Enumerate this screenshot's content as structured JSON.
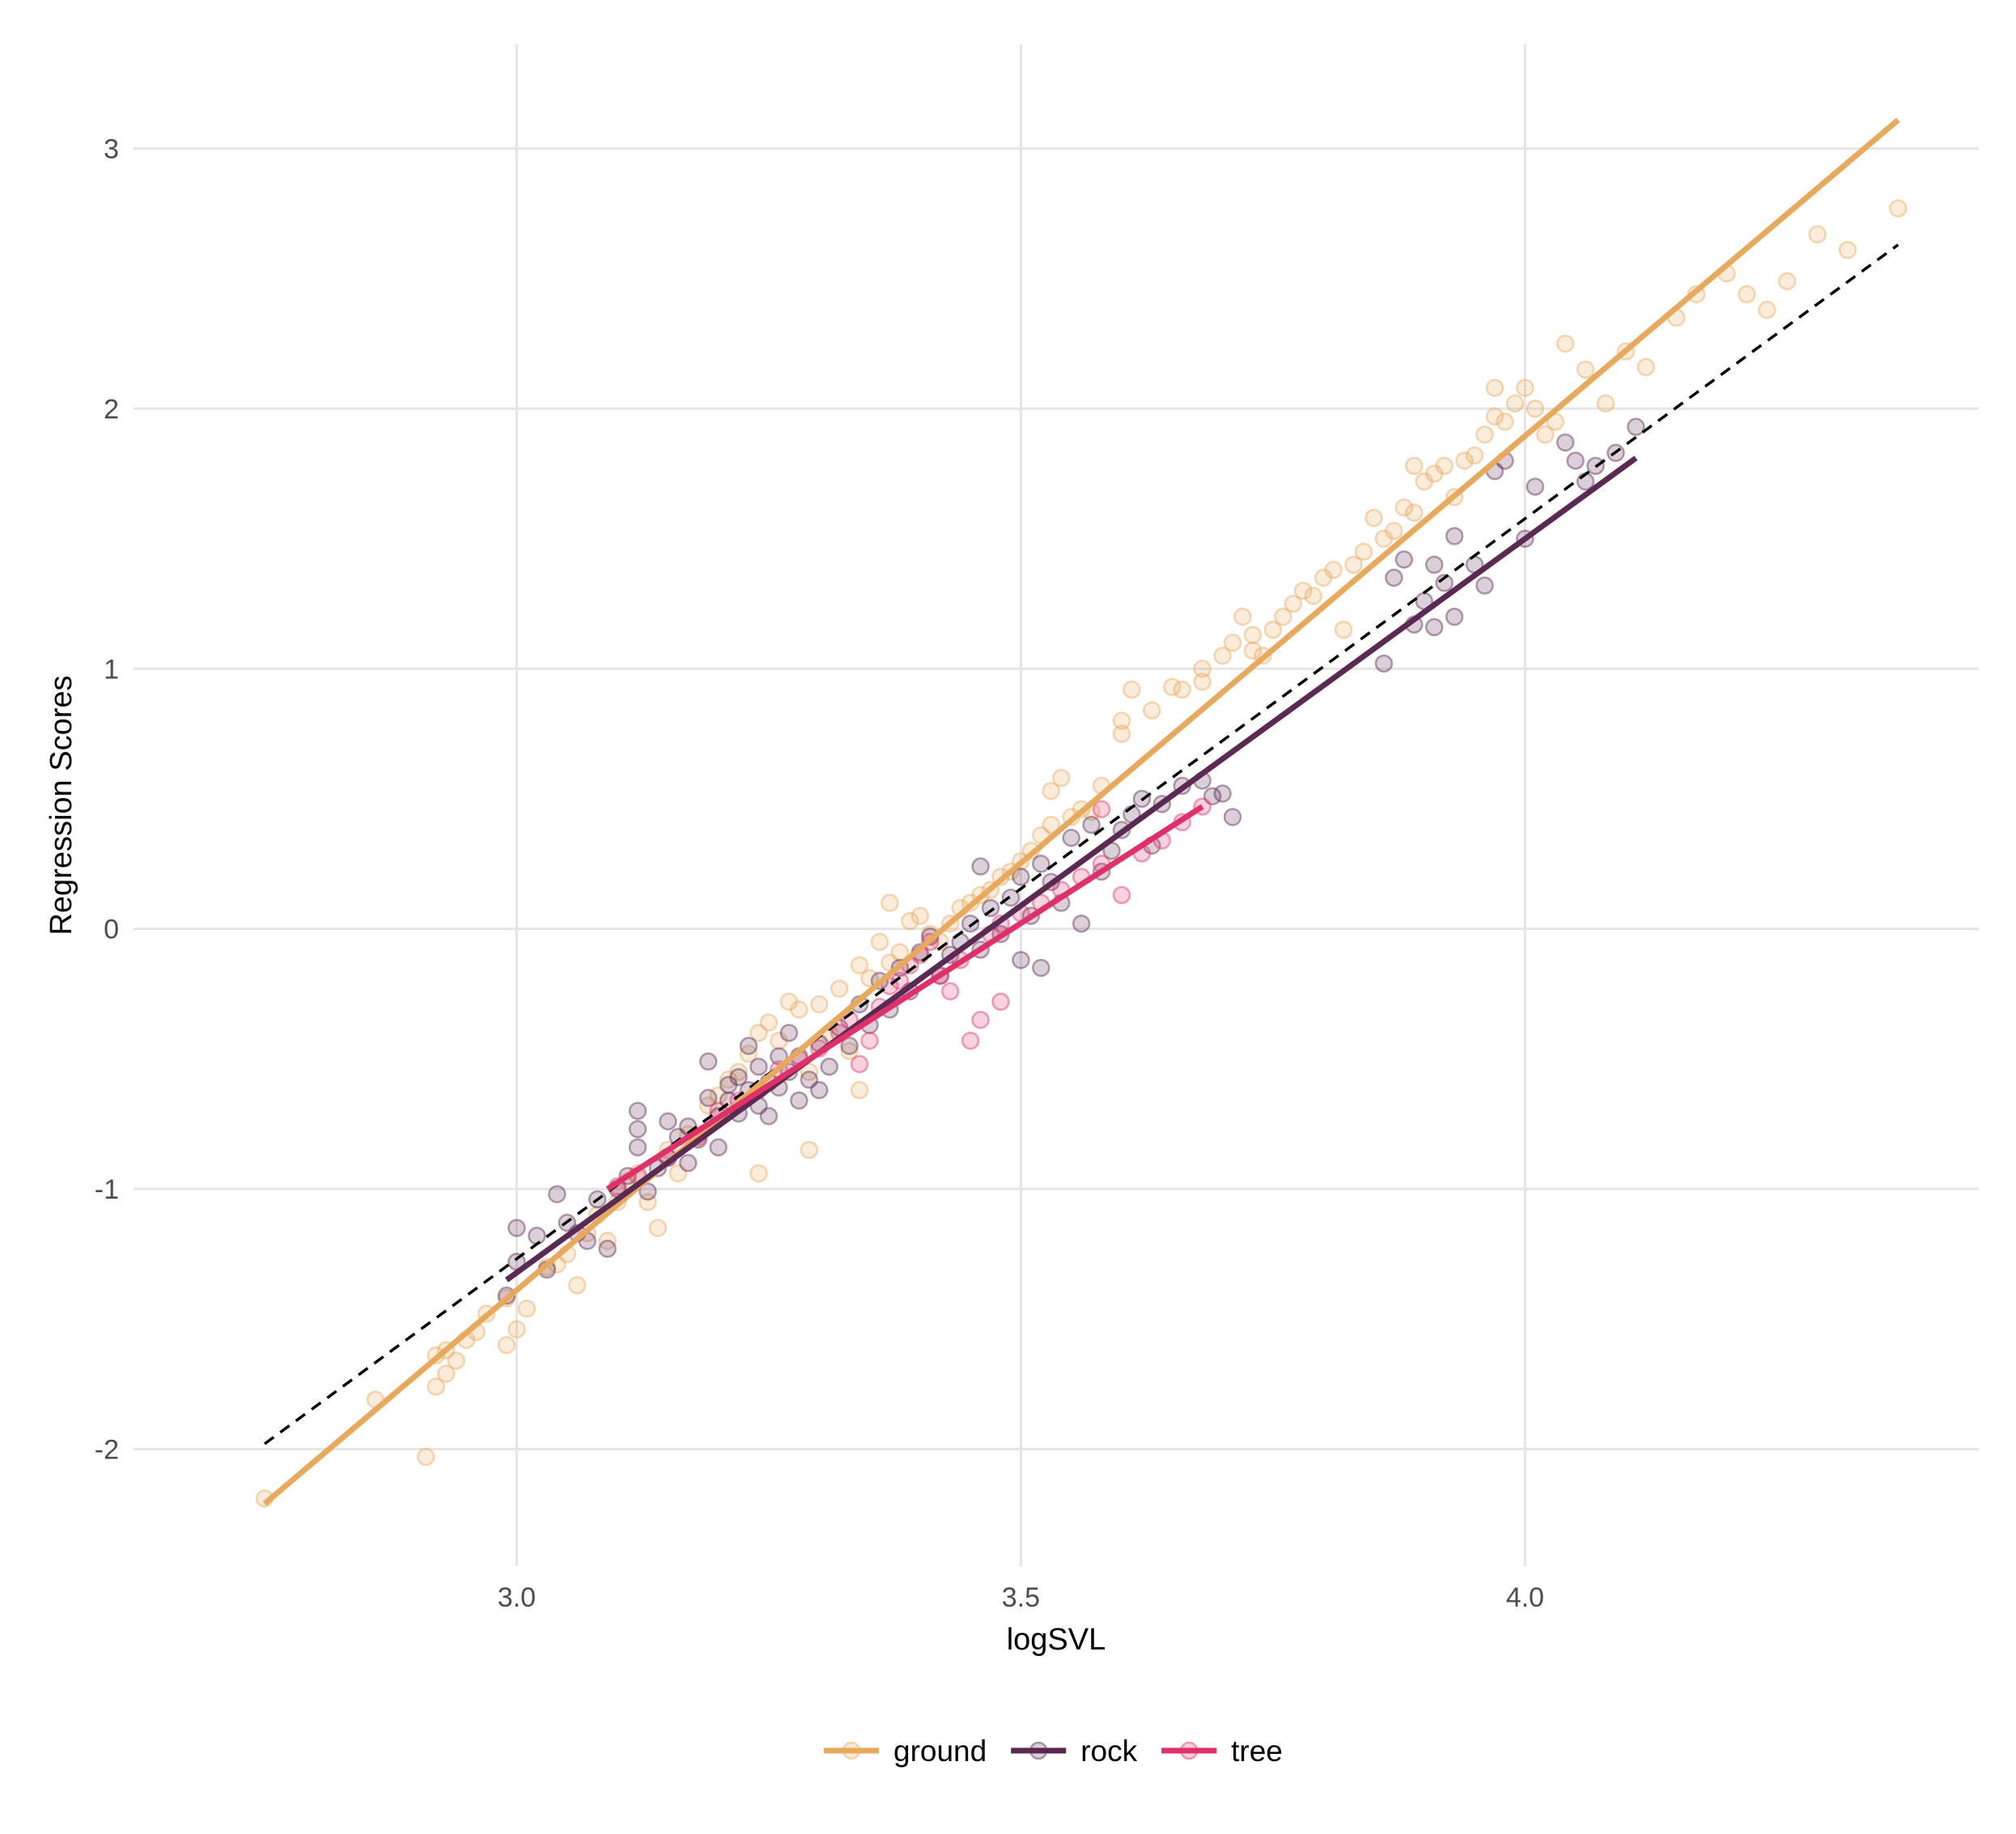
{
  "chart_data": {
    "type": "scatter",
    "title": "",
    "xlabel": "logSVL",
    "ylabel": "Regression Scores",
    "xlim": [
      2.62,
      4.45
    ],
    "ylim": [
      -2.45,
      3.4
    ],
    "x_ticks": [
      {
        "value": 3.0,
        "label": "3.0"
      },
      {
        "value": 3.5,
        "label": "3.5"
      },
      {
        "value": 4.0,
        "label": "4.0"
      }
    ],
    "y_ticks": [
      {
        "value": -2,
        "label": "-2"
      },
      {
        "value": -1,
        "label": "-1"
      },
      {
        "value": 0,
        "label": "0"
      },
      {
        "value": 1,
        "label": "1"
      },
      {
        "value": 2,
        "label": "2"
      },
      {
        "value": 3,
        "label": "3"
      }
    ],
    "grid": true,
    "legend_position": "bottom",
    "colors": {
      "ground": "#E9A95C",
      "rock": "#5B2A52",
      "tree": "#E0306A",
      "overall": "#000000"
    },
    "series": [
      {
        "name": "ground",
        "color": "#E9A95C",
        "fit": {
          "x": [
            2.75,
            4.37
          ],
          "y": [
            -2.21,
            3.11
          ]
        },
        "points": [
          [
            2.75,
            -2.19
          ],
          [
            2.86,
            -1.81
          ],
          [
            2.91,
            -2.03
          ],
          [
            2.92,
            -1.76
          ],
          [
            2.92,
            -1.64
          ],
          [
            2.93,
            -1.62
          ],
          [
            2.93,
            -1.71
          ],
          [
            2.94,
            -1.66
          ],
          [
            2.95,
            -1.58
          ],
          [
            2.96,
            -1.55
          ],
          [
            2.97,
            -1.48
          ],
          [
            2.99,
            -1.6
          ],
          [
            2.99,
            -1.42
          ],
          [
            3.0,
            -1.54
          ],
          [
            3.01,
            -1.46
          ],
          [
            3.03,
            -1.3
          ],
          [
            3.04,
            -1.29
          ],
          [
            3.05,
            -1.25
          ],
          [
            3.06,
            -1.37
          ],
          [
            3.07,
            -1.17
          ],
          [
            3.08,
            -1.1
          ],
          [
            3.09,
            -1.2
          ],
          [
            3.1,
            -1.05
          ],
          [
            3.11,
            -0.97
          ],
          [
            3.12,
            -0.94
          ],
          [
            3.13,
            -1.05
          ],
          [
            3.14,
            -1.15
          ],
          [
            3.15,
            -0.85
          ],
          [
            3.16,
            -0.94
          ],
          [
            3.17,
            -0.79
          ],
          [
            3.18,
            -0.79
          ],
          [
            3.19,
            -0.68
          ],
          [
            3.2,
            -0.64
          ],
          [
            3.21,
            -0.58
          ],
          [
            3.22,
            -0.55
          ],
          [
            3.23,
            -0.48
          ],
          [
            3.24,
            -0.4
          ],
          [
            3.24,
            -0.94
          ],
          [
            3.25,
            -0.36
          ],
          [
            3.26,
            -0.43
          ],
          [
            3.27,
            -0.28
          ],
          [
            3.28,
            -0.31
          ],
          [
            3.29,
            -0.55
          ],
          [
            3.29,
            -0.85
          ],
          [
            3.3,
            -0.29
          ],
          [
            3.31,
            -0.4
          ],
          [
            3.32,
            -0.23
          ],
          [
            3.33,
            -0.47
          ],
          [
            3.34,
            -0.62
          ],
          [
            3.34,
            -0.14
          ],
          [
            3.35,
            -0.19
          ],
          [
            3.36,
            -0.05
          ],
          [
            3.37,
            -0.13
          ],
          [
            3.37,
            0.1
          ],
          [
            3.38,
            -0.09
          ],
          [
            3.39,
            0.03
          ],
          [
            3.4,
            0.05
          ],
          [
            3.41,
            -0.02
          ],
          [
            3.42,
            -0.05
          ],
          [
            3.43,
            0.02
          ],
          [
            3.44,
            0.08
          ],
          [
            3.45,
            0.1
          ],
          [
            3.46,
            0.13
          ],
          [
            3.47,
            0.15
          ],
          [
            3.48,
            0.2
          ],
          [
            3.49,
            0.22
          ],
          [
            3.5,
            0.26
          ],
          [
            3.51,
            0.3
          ],
          [
            3.52,
            0.36
          ],
          [
            3.53,
            0.4
          ],
          [
            3.53,
            0.53
          ],
          [
            3.54,
            0.58
          ],
          [
            3.55,
            0.43
          ],
          [
            3.56,
            0.46
          ],
          [
            3.57,
            0.45
          ],
          [
            3.58,
            0.55
          ],
          [
            3.6,
            0.75
          ],
          [
            3.6,
            0.8
          ],
          [
            3.61,
            0.92
          ],
          [
            3.63,
            0.84
          ],
          [
            3.65,
            0.93
          ],
          [
            3.66,
            0.92
          ],
          [
            3.68,
            1.0
          ],
          [
            3.68,
            0.95
          ],
          [
            3.7,
            1.05
          ],
          [
            3.71,
            1.1
          ],
          [
            3.72,
            1.2
          ],
          [
            3.73,
            1.13
          ],
          [
            3.73,
            1.07
          ],
          [
            3.74,
            1.05
          ],
          [
            3.75,
            1.15
          ],
          [
            3.76,
            1.2
          ],
          [
            3.77,
            1.25
          ],
          [
            3.78,
            1.3
          ],
          [
            3.79,
            1.28
          ],
          [
            3.8,
            1.35
          ],
          [
            3.81,
            1.38
          ],
          [
            3.82,
            1.15
          ],
          [
            3.83,
            1.4
          ],
          [
            3.84,
            1.45
          ],
          [
            3.85,
            1.58
          ],
          [
            3.86,
            1.5
          ],
          [
            3.87,
            1.53
          ],
          [
            3.88,
            1.62
          ],
          [
            3.89,
            1.6
          ],
          [
            3.89,
            1.78
          ],
          [
            3.9,
            1.72
          ],
          [
            3.91,
            1.75
          ],
          [
            3.92,
            1.78
          ],
          [
            3.93,
            1.66
          ],
          [
            3.94,
            1.8
          ],
          [
            3.95,
            1.82
          ],
          [
            3.96,
            1.9
          ],
          [
            3.97,
            1.97
          ],
          [
            3.97,
            2.08
          ],
          [
            3.98,
            1.95
          ],
          [
            3.99,
            2.02
          ],
          [
            4.0,
            2.08
          ],
          [
            4.01,
            2.0
          ],
          [
            4.02,
            1.9
          ],
          [
            4.03,
            1.95
          ],
          [
            4.04,
            2.25
          ],
          [
            4.06,
            2.15
          ],
          [
            4.08,
            2.02
          ],
          [
            4.1,
            2.22
          ],
          [
            4.12,
            2.16
          ],
          [
            4.15,
            2.35
          ],
          [
            4.17,
            2.44
          ],
          [
            4.2,
            2.52
          ],
          [
            4.22,
            2.44
          ],
          [
            4.24,
            2.38
          ],
          [
            4.26,
            2.49
          ],
          [
            4.29,
            2.67
          ],
          [
            4.32,
            2.61
          ],
          [
            4.37,
            2.77
          ]
        ]
      },
      {
        "name": "rock",
        "color": "#5B2A52",
        "fit": {
          "x": [
            2.99,
            4.11
          ],
          "y": [
            -1.35,
            1.81
          ]
        },
        "points": [
          [
            2.99,
            -1.41
          ],
          [
            3.0,
            -1.15
          ],
          [
            3.0,
            -1.28
          ],
          [
            3.02,
            -1.18
          ],
          [
            3.03,
            -1.31
          ],
          [
            3.04,
            -1.02
          ],
          [
            3.05,
            -1.13
          ],
          [
            3.06,
            -1.17
          ],
          [
            3.07,
            -1.2
          ],
          [
            3.08,
            -1.04
          ],
          [
            3.09,
            -1.23
          ],
          [
            3.1,
            -1.0
          ],
          [
            3.11,
            -0.95
          ],
          [
            3.12,
            -0.84
          ],
          [
            3.12,
            -0.77
          ],
          [
            3.12,
            -0.7
          ],
          [
            3.13,
            -1.01
          ],
          [
            3.14,
            -0.92
          ],
          [
            3.15,
            -0.88
          ],
          [
            3.15,
            -0.74
          ],
          [
            3.16,
            -0.8
          ],
          [
            3.17,
            -0.9
          ],
          [
            3.17,
            -0.76
          ],
          [
            3.18,
            -0.81
          ],
          [
            3.19,
            -0.65
          ],
          [
            3.19,
            -0.51
          ],
          [
            3.2,
            -0.72
          ],
          [
            3.2,
            -0.84
          ],
          [
            3.21,
            -0.6
          ],
          [
            3.21,
            -0.66
          ],
          [
            3.22,
            -0.57
          ],
          [
            3.22,
            -0.71
          ],
          [
            3.23,
            -0.45
          ],
          [
            3.23,
            -0.62
          ],
          [
            3.24,
            -0.53
          ],
          [
            3.24,
            -0.68
          ],
          [
            3.25,
            -0.59
          ],
          [
            3.25,
            -0.72
          ],
          [
            3.26,
            -0.49
          ],
          [
            3.26,
            -0.61
          ],
          [
            3.27,
            -0.4
          ],
          [
            3.27,
            -0.55
          ],
          [
            3.28,
            -0.66
          ],
          [
            3.28,
            -0.49
          ],
          [
            3.29,
            -0.58
          ],
          [
            3.3,
            -0.44
          ],
          [
            3.3,
            -0.62
          ],
          [
            3.31,
            -0.53
          ],
          [
            3.32,
            -0.38
          ],
          [
            3.33,
            -0.45
          ],
          [
            3.34,
            -0.29
          ],
          [
            3.35,
            -0.37
          ],
          [
            3.36,
            -0.2
          ],
          [
            3.37,
            -0.31
          ],
          [
            3.38,
            -0.15
          ],
          [
            3.39,
            -0.24
          ],
          [
            3.4,
            -0.09
          ],
          [
            3.41,
            -0.03
          ],
          [
            3.42,
            -0.18
          ],
          [
            3.43,
            -0.1
          ],
          [
            3.44,
            -0.05
          ],
          [
            3.45,
            0.02
          ],
          [
            3.46,
            -0.08
          ],
          [
            3.46,
            0.24
          ],
          [
            3.47,
            0.08
          ],
          [
            3.48,
            -0.02
          ],
          [
            3.49,
            0.12
          ],
          [
            3.5,
            0.2
          ],
          [
            3.5,
            -0.12
          ],
          [
            3.51,
            0.05
          ],
          [
            3.52,
            -0.15
          ],
          [
            3.52,
            0.25
          ],
          [
            3.53,
            0.18
          ],
          [
            3.54,
            0.1
          ],
          [
            3.55,
            0.35
          ],
          [
            3.56,
            0.02
          ],
          [
            3.57,
            0.4
          ],
          [
            3.58,
            0.22
          ],
          [
            3.59,
            0.3
          ],
          [
            3.6,
            0.38
          ],
          [
            3.61,
            0.44
          ],
          [
            3.62,
            0.5
          ],
          [
            3.63,
            0.32
          ],
          [
            3.64,
            0.48
          ],
          [
            3.66,
            0.55
          ],
          [
            3.68,
            0.57
          ],
          [
            3.69,
            0.51
          ],
          [
            3.7,
            0.52
          ],
          [
            3.71,
            0.43
          ],
          [
            3.86,
            1.02
          ],
          [
            3.87,
            1.35
          ],
          [
            3.88,
            1.42
          ],
          [
            3.89,
            1.17
          ],
          [
            3.9,
            1.26
          ],
          [
            3.91,
            1.16
          ],
          [
            3.91,
            1.4
          ],
          [
            3.92,
            1.33
          ],
          [
            3.93,
            1.51
          ],
          [
            3.93,
            1.2
          ],
          [
            3.95,
            1.4
          ],
          [
            3.96,
            1.32
          ],
          [
            3.97,
            1.76
          ],
          [
            3.98,
            1.8
          ],
          [
            4.0,
            1.5
          ],
          [
            4.01,
            1.7
          ],
          [
            4.04,
            1.87
          ],
          [
            4.05,
            1.8
          ],
          [
            4.06,
            1.72
          ],
          [
            4.07,
            1.78
          ],
          [
            4.09,
            1.83
          ],
          [
            4.11,
            1.93
          ]
        ]
      },
      {
        "name": "tree",
        "color": "#E0306A",
        "fit": {
          "x": [
            3.09,
            3.68
          ],
          "y": [
            -1.0,
            0.47
          ]
        },
        "points": [
          [
            3.1,
            -0.99
          ],
          [
            3.12,
            -0.95
          ],
          [
            3.15,
            -0.88
          ],
          [
            3.18,
            -0.8
          ],
          [
            3.2,
            -0.7
          ],
          [
            3.22,
            -0.66
          ],
          [
            3.24,
            -0.62
          ],
          [
            3.26,
            -0.54
          ],
          [
            3.28,
            -0.5
          ],
          [
            3.3,
            -0.46
          ],
          [
            3.32,
            -0.4
          ],
          [
            3.33,
            -0.35
          ],
          [
            3.34,
            -0.52
          ],
          [
            3.35,
            -0.43
          ],
          [
            3.36,
            -0.3
          ],
          [
            3.37,
            -0.22
          ],
          [
            3.38,
            -0.2
          ],
          [
            3.39,
            -0.14
          ],
          [
            3.4,
            -0.1
          ],
          [
            3.41,
            -0.05
          ],
          [
            3.42,
            -0.18
          ],
          [
            3.43,
            -0.24
          ],
          [
            3.44,
            -0.12
          ],
          [
            3.45,
            -0.43
          ],
          [
            3.46,
            -0.35
          ],
          [
            3.47,
            -0.02
          ],
          [
            3.48,
            0.02
          ],
          [
            3.5,
            0.06
          ],
          [
            3.52,
            0.1
          ],
          [
            3.54,
            0.15
          ],
          [
            3.56,
            0.2
          ],
          [
            3.58,
            0.25
          ],
          [
            3.6,
            0.13
          ],
          [
            3.62,
            0.29
          ],
          [
            3.64,
            0.34
          ],
          [
            3.66,
            0.41
          ],
          [
            3.68,
            0.47
          ],
          [
            3.58,
            0.46
          ],
          [
            3.48,
            -0.28
          ]
        ]
      }
    ],
    "overall_fit": {
      "style": "dashed",
      "color": "#000000",
      "x": [
        2.75,
        4.37
      ],
      "y": [
        -1.98,
        2.63
      ]
    }
  }
}
